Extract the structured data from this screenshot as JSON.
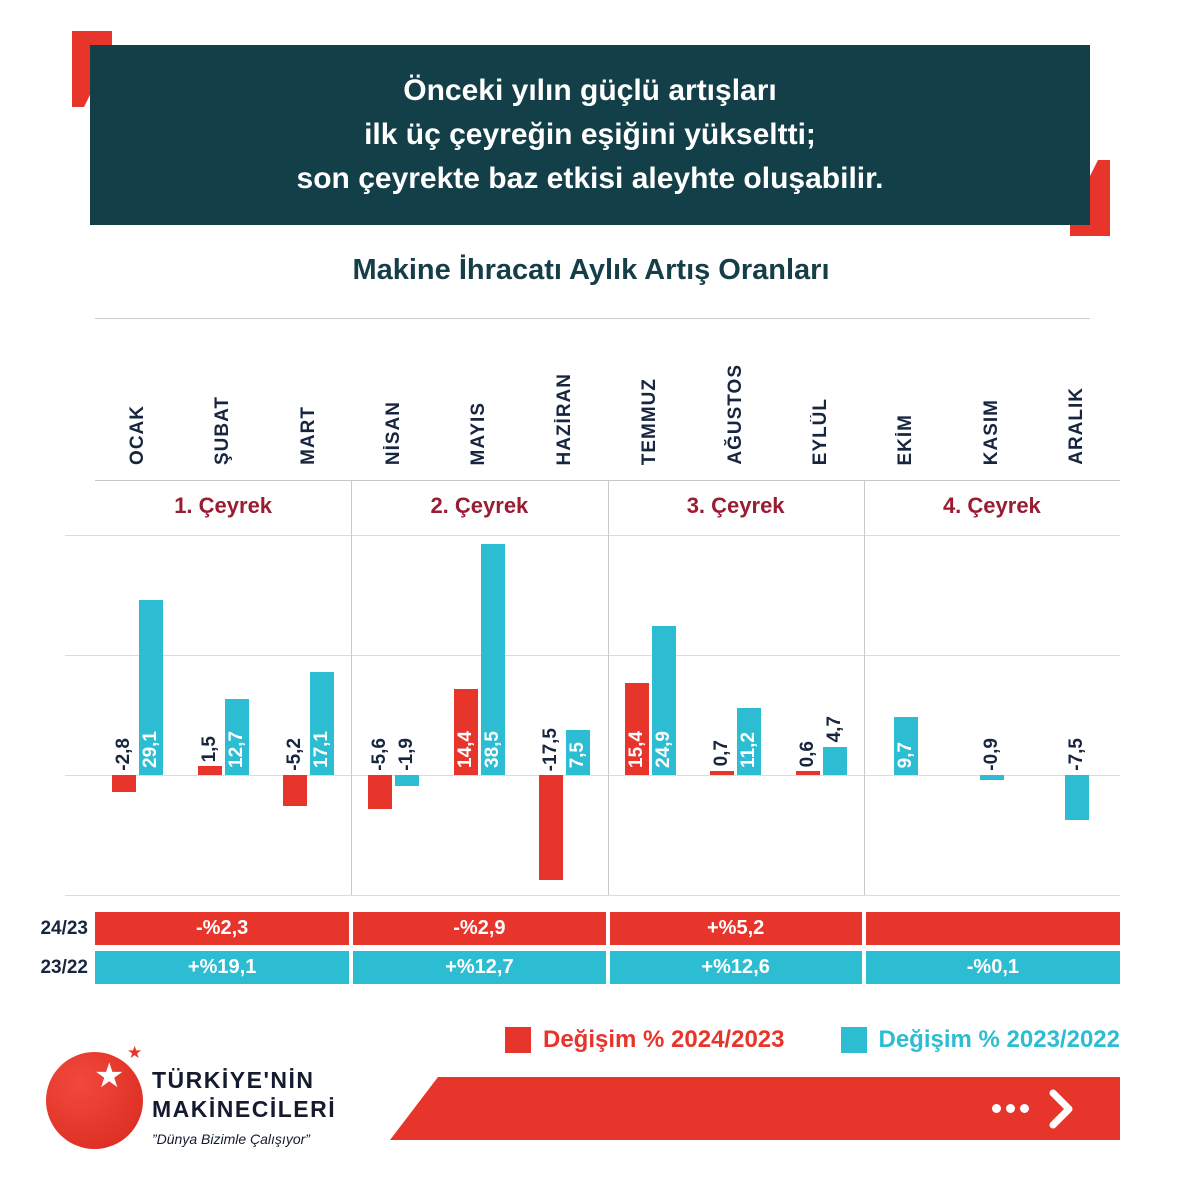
{
  "header": {
    "line1": "Önceki yılın güçlü artışları",
    "line2": "ilk üç çeyreğin eşiğini yükseltti;",
    "line3": "son çeyrekte baz etkisi aleyhte oluşabilir."
  },
  "chart_title": "Makine İhracatı Aylık Artış Oranları",
  "chart_data": {
    "type": "bar",
    "title": "Makine İhracatı Aylık Artış Oranları",
    "categories": [
      "OCAK",
      "ŞUBAT",
      "MART",
      "NİSAN",
      "MAYIS",
      "HAZİRAN",
      "TEMMUZ",
      "AĞUSTOS",
      "EYLÜL",
      "EKİM",
      "KASIM",
      "ARALIK"
    ],
    "quarters": [
      "1. Çeyrek",
      "2. Çeyrek",
      "3. Çeyrek",
      "4. Çeyrek"
    ],
    "series": [
      {
        "name": "Değişim % 2024/2023",
        "color": "#e7352b",
        "values": [
          -2.8,
          1.5,
          -5.2,
          -5.6,
          14.4,
          -17.5,
          15.4,
          0.7,
          0.6,
          null,
          null,
          null
        ],
        "display_values": [
          "-2,8",
          "1,5",
          "-5,2",
          "-5,6",
          "14,4",
          "-17,5",
          "15,4",
          "0,7",
          "0,6",
          "",
          "",
          ""
        ]
      },
      {
        "name": "Değişim % 2023/2022",
        "color": "#2cbdd3",
        "values": [
          29.1,
          12.7,
          17.1,
          -1.9,
          38.5,
          7.5,
          24.9,
          11.2,
          4.7,
          9.7,
          -0.9,
          -7.5
        ],
        "display_values": [
          "29,1",
          "12,7",
          "17,1",
          "-1,9",
          "38,5",
          "7,5",
          "24,9",
          "11,2",
          "4,7",
          "9,7",
          "-0,9",
          "-7,5"
        ]
      }
    ],
    "ylim": [
      -22,
      40
    ],
    "grid": true,
    "legend_position": "bottom"
  },
  "summary_table": {
    "rows": [
      {
        "label": "24/23",
        "color": "#e7352b",
        "cells": [
          "-%2,3",
          "-%2,9",
          "+%5,2",
          ""
        ]
      },
      {
        "label": "23/22",
        "color": "#2cbdd3",
        "cells": [
          "+%19,1",
          "+%12,7",
          "+%12,6",
          "-%0,1"
        ]
      }
    ]
  },
  "legend": [
    {
      "label": "Değişim % 2024/2023",
      "color": "#e7352b"
    },
    {
      "label": "Değişim % 2023/2022",
      "color": "#2cbdd3"
    }
  ],
  "footer": {
    "brand_line1": "TÜRKİYE'NİN",
    "brand_line2": "MAKİNECİLERİ",
    "tagline": "”Dünya Bizimle Çalışıyor”"
  },
  "colors": {
    "accent_red": "#e7352b",
    "accent_cyan": "#2cbdd3",
    "header_bg": "#133f48",
    "quarter_label": "#9a1c31",
    "text_dark": "#17253f"
  }
}
